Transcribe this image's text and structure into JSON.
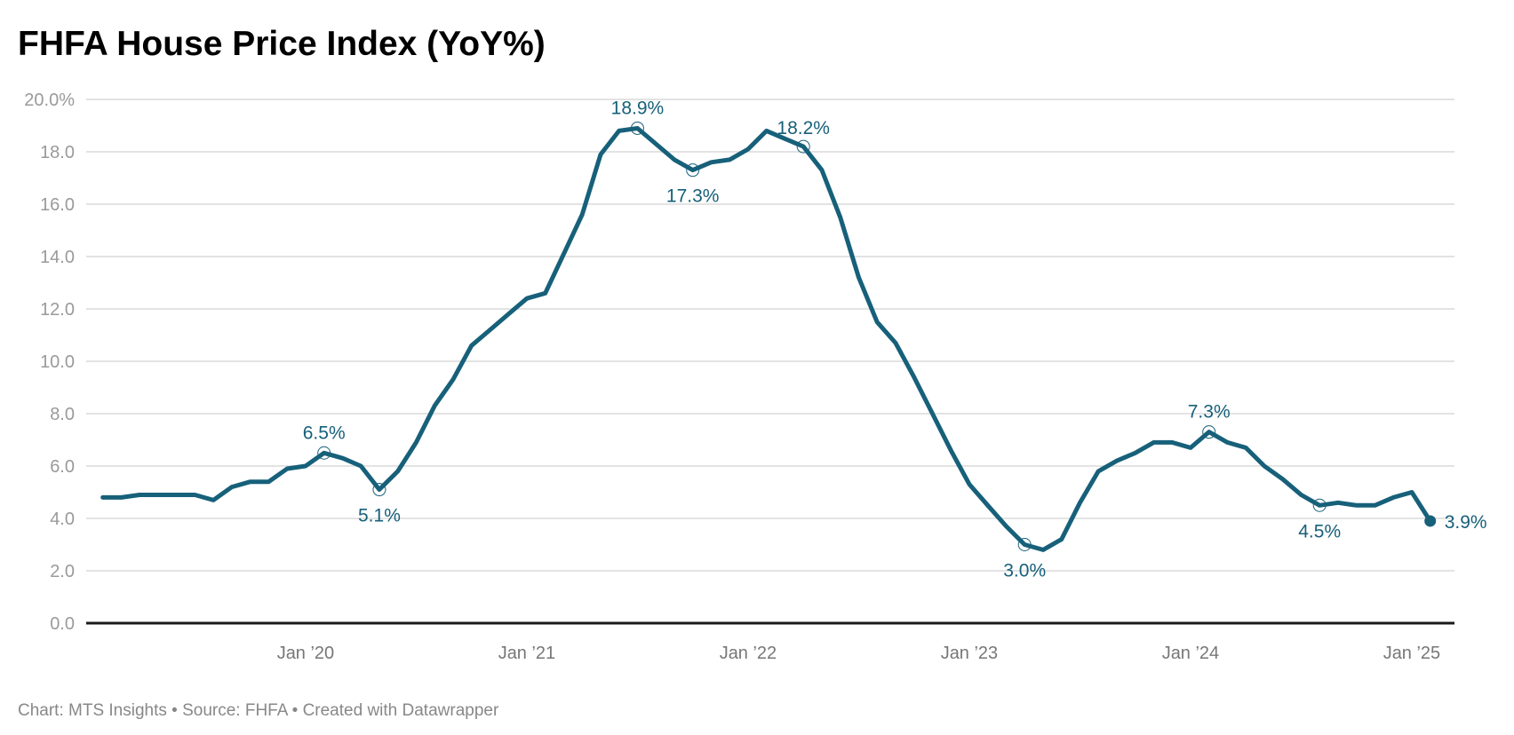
{
  "chart_data": {
    "type": "line",
    "title": "FHFA House Price Index (YoY%)",
    "footer": "Chart: MTS Insights • Source: FHFA • Created with Datawrapper",
    "line_color": "#17607a",
    "x_start": "2019-02",
    "x_end": "2025-02",
    "x_interval": "monthly",
    "x_ticks": [
      {
        "date": "2020-01",
        "label": "Jan ’20"
      },
      {
        "date": "2021-01",
        "label": "Jan ’21"
      },
      {
        "date": "2022-01",
        "label": "Jan ’22"
      },
      {
        "date": "2023-01",
        "label": "Jan ’23"
      },
      {
        "date": "2024-01",
        "label": "Jan ’24"
      },
      {
        "date": "2025-01",
        "label": "Jan ’25"
      }
    ],
    "ylim": [
      0,
      20
    ],
    "y_ticks": [
      {
        "value": 0,
        "label": "0.0"
      },
      {
        "value": 2,
        "label": "2.0"
      },
      {
        "value": 4,
        "label": "4.0"
      },
      {
        "value": 6,
        "label": "6.0"
      },
      {
        "value": 8,
        "label": "8.0"
      },
      {
        "value": 10,
        "label": "10.0"
      },
      {
        "value": 12,
        "label": "12.0"
      },
      {
        "value": 14,
        "label": "14.0"
      },
      {
        "value": 16,
        "label": "16.0"
      },
      {
        "value": 18,
        "label": "18.0"
      },
      {
        "value": 20,
        "label": "20.0%"
      }
    ],
    "grid": true,
    "values": [
      4.8,
      4.8,
      4.9,
      4.9,
      4.9,
      4.9,
      4.7,
      5.2,
      5.4,
      5.4,
      5.9,
      6.0,
      6.5,
      6.3,
      6.0,
      5.1,
      5.8,
      6.9,
      8.3,
      9.3,
      10.6,
      11.2,
      11.8,
      12.4,
      12.6,
      14.1,
      15.6,
      17.9,
      18.8,
      18.9,
      18.3,
      17.7,
      17.3,
      17.6,
      17.7,
      18.1,
      18.8,
      18.5,
      18.2,
      17.3,
      15.5,
      13.2,
      11.5,
      10.7,
      9.4,
      8.0,
      6.6,
      5.3,
      4.5,
      3.7,
      3.0,
      2.8,
      3.2,
      4.6,
      5.8,
      6.2,
      6.5,
      6.9,
      6.9,
      6.7,
      7.3,
      6.9,
      6.7,
      6.0,
      5.5,
      4.9,
      4.5,
      4.6,
      4.5,
      4.5,
      4.8,
      5.0,
      3.9
    ],
    "annotations": [
      {
        "date": "2020-02",
        "value": 6.5,
        "label": "6.5%",
        "placement": "above"
      },
      {
        "date": "2020-05",
        "value": 5.1,
        "label": "5.1%",
        "placement": "below"
      },
      {
        "date": "2021-07",
        "value": 18.9,
        "label": "18.9%",
        "placement": "above"
      },
      {
        "date": "2021-10",
        "value": 17.3,
        "label": "17.3%",
        "placement": "below"
      },
      {
        "date": "2022-04",
        "value": 18.2,
        "label": "18.2%",
        "placement": "above-left"
      },
      {
        "date": "2023-04",
        "value": 3.0,
        "label": "3.0%",
        "placement": "below"
      },
      {
        "date": "2024-02",
        "value": 7.3,
        "label": "7.3%",
        "placement": "above"
      },
      {
        "date": "2024-08",
        "value": 4.5,
        "label": "4.5%",
        "placement": "below"
      },
      {
        "date": "2025-02",
        "value": 3.9,
        "label": "3.9%",
        "placement": "right",
        "filled": true
      }
    ]
  }
}
